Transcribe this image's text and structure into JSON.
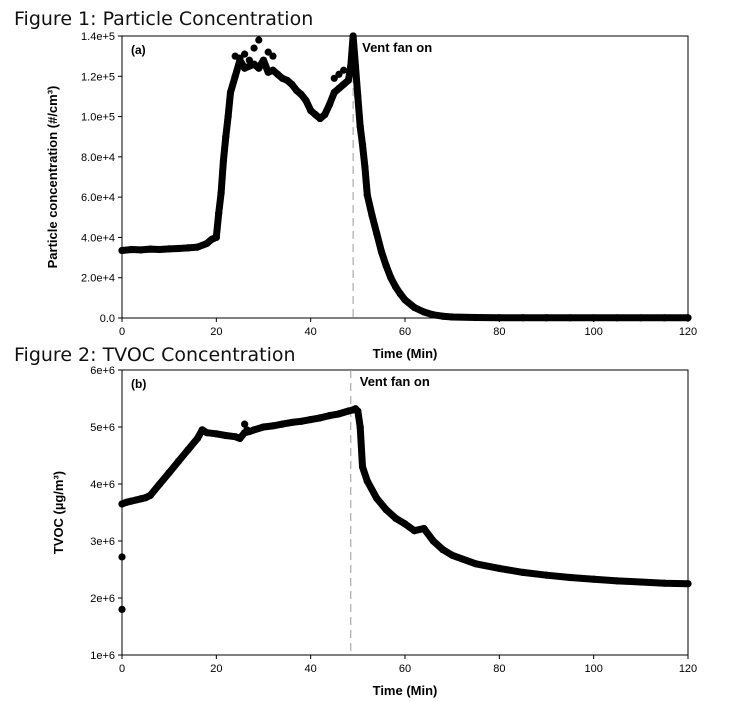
{
  "figure1_title": "Figure 1: Particle Concentration",
  "figure2_title": "Figure 2: TVOC Concentration",
  "chart_data": [
    {
      "type": "scatter",
      "panel_label": "(a)",
      "annotation": "Vent fan on",
      "xlabel": "Time (Min)",
      "ylabel": "Particle concentration (#/cm³)",
      "xlim": [
        0,
        120
      ],
      "ylim": [
        0,
        140000
      ],
      "x_ticks": [
        "0",
        "20",
        "40",
        "60",
        "80",
        "100",
        "120"
      ],
      "y_ticks": [
        "0.0",
        "2.0e+4",
        "4.0e+4",
        "6.0e+4",
        "8.0e+4",
        "1.0e+5",
        "1.2e+5",
        "1.4e+5"
      ],
      "vent_fan_on_min": 49,
      "grid": false,
      "x": [
        0,
        2,
        4,
        6,
        8,
        10,
        12,
        14,
        16,
        18,
        19,
        20,
        20.5,
        21,
        21.5,
        22,
        22.5,
        23,
        24,
        25,
        26,
        27,
        28,
        29,
        30,
        31,
        32,
        33,
        34,
        35,
        36,
        37,
        38,
        39,
        40,
        41,
        42,
        43,
        44,
        45,
        46,
        47,
        48,
        48.5,
        49,
        49.5,
        50,
        50.5,
        51,
        51.5,
        52,
        53,
        54,
        55,
        56,
        57,
        58,
        59,
        60,
        62,
        64,
        66,
        68,
        70,
        75,
        80,
        85,
        90,
        95,
        100,
        105,
        110,
        115,
        120
      ],
      "y": [
        33500,
        34000,
        33800,
        34200,
        34000,
        34300,
        34500,
        34800,
        35200,
        37000,
        39000,
        40000,
        52000,
        62000,
        78000,
        90000,
        100000,
        112000,
        120000,
        128000,
        124000,
        125000,
        126000,
        124000,
        128000,
        122000,
        123000,
        121000,
        119000,
        118000,
        116000,
        113000,
        111000,
        108000,
        103000,
        101000,
        99000,
        101000,
        106000,
        112000,
        114000,
        116000,
        118000,
        125000,
        140000,
        125000,
        110000,
        95000,
        86000,
        75000,
        61000,
        51000,
        42000,
        33000,
        26000,
        20000,
        15500,
        12000,
        9000,
        5200,
        3000,
        1600,
        900,
        500,
        250,
        150,
        120,
        110,
        100,
        100,
        100,
        100,
        100,
        100
      ],
      "scatter_x": [
        24,
        25,
        26,
        27,
        28,
        29,
        30,
        31,
        32,
        45,
        46,
        47
      ],
      "scatter_y": [
        130000,
        129000,
        131000,
        128000,
        134000,
        138000,
        127000,
        132000,
        130000,
        119000,
        121000,
        123000
      ]
    },
    {
      "type": "scatter",
      "panel_label": "(b)",
      "annotation": "Vent fan on",
      "xlabel": "Time (Min)",
      "ylabel": "TVOC (µg/m³)",
      "xlim": [
        0,
        120
      ],
      "ylim": [
        1000000,
        6000000
      ],
      "x_ticks": [
        "0",
        "20",
        "40",
        "60",
        "80",
        "100",
        "120"
      ],
      "y_ticks": [
        "1e+6",
        "2e+6",
        "3e+6",
        "4e+6",
        "5e+6",
        "6e+6"
      ],
      "vent_fan_on_min": 48.5,
      "grid": false,
      "x": [
        0,
        1,
        2,
        3,
        4,
        5,
        6,
        8,
        10,
        12,
        14,
        16,
        17,
        18,
        20,
        22,
        24,
        25,
        26,
        27,
        28,
        30,
        32,
        34,
        36,
        38,
        40,
        42,
        44,
        46,
        48,
        49,
        49.5,
        50,
        50.5,
        51,
        52,
        54,
        56,
        58,
        60,
        62,
        64,
        66,
        68,
        70,
        75,
        80,
        85,
        90,
        95,
        100,
        105,
        110,
        115,
        120
      ],
      "y": [
        3650000,
        3680000,
        3700000,
        3720000,
        3740000,
        3760000,
        3800000,
        4000000,
        4200000,
        4400000,
        4600000,
        4800000,
        4950000,
        4900000,
        4880000,
        4850000,
        4830000,
        4800000,
        4900000,
        4920000,
        4950000,
        5000000,
        5020000,
        5050000,
        5080000,
        5100000,
        5130000,
        5160000,
        5200000,
        5230000,
        5280000,
        5300000,
        5320000,
        5280000,
        5000000,
        4300000,
        4050000,
        3750000,
        3550000,
        3400000,
        3300000,
        3180000,
        3220000,
        3000000,
        2850000,
        2750000,
        2600000,
        2520000,
        2450000,
        2400000,
        2360000,
        2330000,
        2300000,
        2280000,
        2260000,
        2250000
      ],
      "scatter_x": [
        0,
        0,
        26,
        26.5
      ],
      "scatter_y": [
        2720000,
        1800000,
        5050000,
        4950000
      ]
    }
  ]
}
